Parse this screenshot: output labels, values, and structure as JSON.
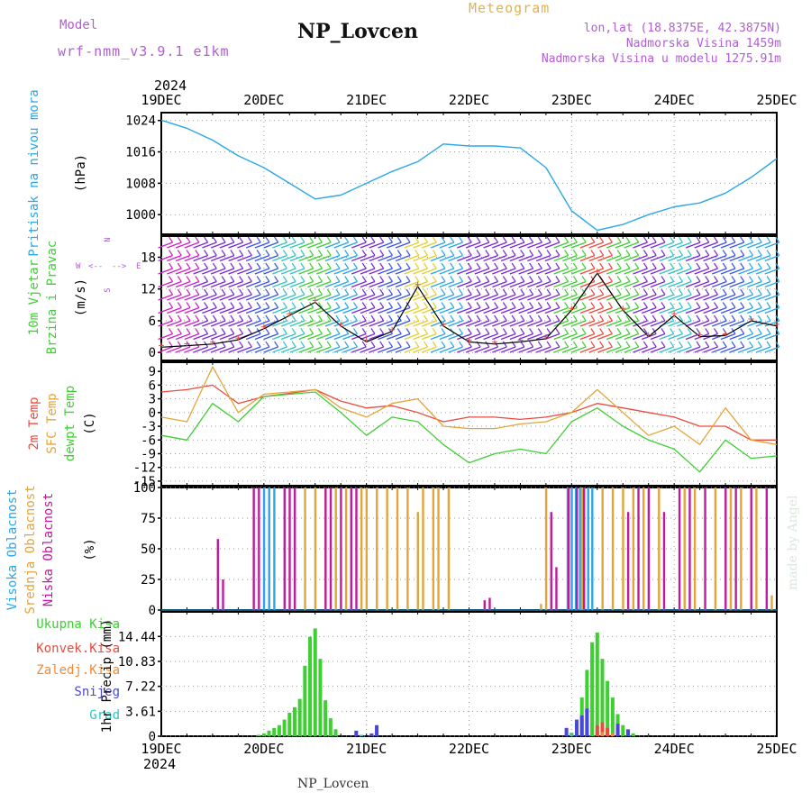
{
  "header": {
    "model_label": "Model",
    "model_version": "wrf-nmm_v3.9.1 e1km",
    "station": "NP_Lovcen",
    "title": "Meteogram",
    "lonlat": "lon,lat (18.8375E, 42.3875N)",
    "elevation": "Nadmorska Visina 1459m",
    "elevation_model": "Nadmorska Visina u modelu 1275.91m"
  },
  "footer": {
    "station": "NP_Lovcen",
    "credit": "made by Angel"
  },
  "colors": {
    "pressure": "#2aa7e6",
    "wind_speed": "#000000",
    "temp2m": "#ea4b3e",
    "sfc_temp": "#e3a43a",
    "dewpt": "#3ecf33",
    "cloud_high": "#2aa7e6",
    "cloud_mid": "#e3a43a",
    "cloud_low": "#c21a9e",
    "precip_total": "#3ecf33",
    "precip_conv": "#ea4b3e",
    "precip_frozen": "#f08a36",
    "snow": "#4848d8",
    "graupel": "#33c3c3",
    "grid": "#9a9a9a",
    "direction_label": "#b35cd6"
  },
  "chart_data": [
    {
      "type": "line",
      "id": "pressure",
      "top_axis": {
        "year": "2024",
        "days": [
          "19DEC",
          "20DEC",
          "21DEC",
          "22DEC",
          "23DEC",
          "24DEC",
          "25DEC"
        ]
      },
      "ylabel": "Pritisak na nivou mora",
      "unit": "(hPa)",
      "yticks": [
        "1024",
        "1016",
        "1008",
        "1000"
      ],
      "ylim": [
        995,
        1026
      ],
      "grid": true,
      "series": [
        {
          "x": [
            0,
            0.25,
            0.5,
            0.75,
            1,
            1.25,
            1.5,
            1.75,
            2,
            2.25,
            2.5,
            2.75,
            3,
            3.25,
            3.5,
            3.75,
            4,
            4.25,
            4.5,
            4.75,
            5,
            5.25,
            5.5,
            5.75,
            6
          ],
          "values": [
            1024.1,
            1022,
            1019,
            1015,
            1012,
            1008,
            1004,
            1005,
            1008,
            1011,
            1013.5,
            1018,
            1017.5,
            1017.5,
            1017,
            1012,
            1001,
            996,
            997.5,
            1000,
            1002,
            1003,
            1005.5,
            1009.5,
            1014.3
          ]
        }
      ]
    },
    {
      "type": "line",
      "id": "wind",
      "ylabel": "10m Vjetar",
      "ylabel2": "Brzina i Pravac",
      "unit": "(m/s)",
      "direction_legend": {
        "n": "N",
        "s": "S",
        "w": "W",
        "e": "E",
        "left_arrow": "<--",
        "right_arrow": "-->"
      },
      "yticks": [
        "18",
        "12",
        "6",
        "0"
      ],
      "ylim": [
        -1.5,
        22
      ],
      "grid": true,
      "series": [
        {
          "name": "speed",
          "x": [
            0,
            0.25,
            0.5,
            0.75,
            1,
            1.25,
            1.5,
            1.75,
            2,
            2.25,
            2.5,
            2.75,
            3,
            3.25,
            3.5,
            3.75,
            4,
            4.25,
            4.5,
            4.75,
            5,
            5.25,
            5.5,
            5.75,
            6
          ],
          "values": [
            1,
            1.3,
            1.6,
            2.4,
            4.5,
            7,
            9.5,
            5,
            2,
            4,
            12.5,
            5,
            2,
            1.6,
            2,
            2.6,
            8,
            15,
            8,
            3,
            7,
            3,
            3.2,
            6,
            5
          ]
        }
      ]
    },
    {
      "type": "line",
      "id": "temperature",
      "ylabels": [
        "2m Temp",
        "SFC Temp",
        "dewpt Temp"
      ],
      "unit": "(C)",
      "yticks": [
        "9",
        "6",
        "3",
        "0",
        "-3",
        "-6",
        "-9",
        "-12",
        "-15"
      ],
      "ylim": [
        -16,
        11
      ],
      "grid": true,
      "series": [
        {
          "name": "2m Temp",
          "x": [
            0,
            0.25,
            0.5,
            0.75,
            1,
            1.25,
            1.5,
            1.75,
            2,
            2.25,
            2.5,
            2.75,
            3,
            3.25,
            3.5,
            3.75,
            4,
            4.25,
            4.5,
            4.75,
            5,
            5.25,
            5.5,
            5.75,
            6
          ],
          "values": [
            4.5,
            5,
            6,
            2,
            3.5,
            4.2,
            5,
            2.5,
            1,
            1.5,
            0,
            -2,
            -1,
            -1,
            -1.5,
            -1,
            0,
            2,
            1,
            0,
            -1,
            -3,
            -3,
            -6,
            -6
          ]
        },
        {
          "name": "SFC Temp",
          "x": [
            0,
            0.25,
            0.5,
            0.75,
            1,
            1.25,
            1.5,
            1.75,
            2,
            2.25,
            2.5,
            2.75,
            3,
            3.25,
            3.5,
            3.75,
            4,
            4.25,
            4.5,
            4.75,
            5,
            5.25,
            5.5,
            5.75,
            6
          ],
          "values": [
            -1,
            -2,
            10,
            0,
            4,
            4.5,
            5,
            1,
            -1,
            2,
            3,
            -3,
            -3.5,
            -3.5,
            -2.5,
            -2,
            0,
            5,
            0,
            -5,
            -3,
            -7,
            1,
            -6,
            -7
          ]
        },
        {
          "name": "dewpt Temp",
          "x": [
            0,
            0.25,
            0.5,
            0.75,
            1,
            1.25,
            1.5,
            1.75,
            2,
            2.25,
            2.5,
            2.75,
            3,
            3.25,
            3.5,
            3.75,
            4,
            4.25,
            4.5,
            4.75,
            5,
            5.25,
            5.5,
            5.75,
            6
          ],
          "values": [
            -5,
            -6,
            2,
            -2,
            3.5,
            4,
            4.5,
            0,
            -5,
            -1,
            -2,
            -7,
            -11,
            -9,
            -8,
            -9,
            -2,
            1,
            -3,
            -6,
            -8,
            -13,
            -6,
            -10,
            -9.5
          ]
        }
      ]
    },
    {
      "type": "bar",
      "id": "cloud",
      "ylabels": [
        "Visoka Oblacnost",
        "Srednja Oblacnost",
        "Niska Oblacnost"
      ],
      "unit": "(%)",
      "yticks": [
        "100",
        "75",
        "50",
        "25",
        "0"
      ],
      "ylim": [
        0,
        100
      ],
      "grid": true,
      "series": [
        {
          "name": "Visoka Oblacnost",
          "x": [
            1.0,
            1.05,
            1.1,
            3.96,
            4.0,
            4.04,
            4.08,
            4.16,
            4.2
          ],
          "values": [
            100,
            100,
            100,
            100,
            100,
            100,
            100,
            100,
            100
          ]
        },
        {
          "name": "Srednja Oblacnost",
          "x": [
            1.4,
            1.5,
            1.6,
            1.7,
            1.8,
            1.95,
            2.0,
            2.1,
            2.2,
            2.3,
            2.4,
            2.5,
            2.55,
            2.65,
            2.7,
            2.8,
            3.7,
            3.75,
            4.1,
            4.3,
            4.4,
            4.5,
            4.6,
            4.7,
            4.85,
            5.1,
            5.2,
            5.4,
            5.55,
            5.65,
            5.8,
            5.95
          ],
          "values": [
            100,
            100,
            100,
            100,
            100,
            100,
            100,
            100,
            100,
            100,
            100,
            80,
            100,
            100,
            100,
            100,
            5,
            100,
            100,
            100,
            100,
            100,
            100,
            100,
            100,
            100,
            100,
            100,
            100,
            100,
            100,
            12
          ]
        },
        {
          "name": "Niska Oblacnost",
          "x": [
            0.55,
            0.6,
            0.9,
            0.95,
            1.2,
            1.25,
            1.3,
            1.6,
            1.65,
            1.75,
            1.85,
            1.9,
            3.15,
            3.2,
            3.8,
            3.85,
            3.97,
            4.05,
            4.12,
            4.55,
            4.65,
            4.75,
            4.9,
            5.05,
            5.15,
            5.3,
            5.5,
            5.6,
            5.75,
            5.9
          ],
          "values": [
            58,
            25,
            100,
            100,
            100,
            100,
            100,
            100,
            100,
            100,
            100,
            100,
            8,
            10,
            80,
            35,
            100,
            100,
            100,
            80,
            100,
            100,
            80,
            100,
            100,
            100,
            100,
            100,
            100,
            100
          ]
        }
      ]
    },
    {
      "type": "bar",
      "id": "precip",
      "ylabel": "1hr Precip (mm)",
      "legend": [
        "Ukupna Kisa",
        "Konvek.Kisa",
        "Zaledj.Kisa",
        "Snijeg",
        "Grad"
      ],
      "yticks": [
        "14.44",
        "10.83",
        "7.22",
        "3.61",
        "0"
      ],
      "ylim": [
        0,
        18
      ],
      "bottom_axis": {
        "days": [
          "19DEC",
          "20DEC",
          "21DEC",
          "22DEC",
          "23DEC",
          "24DEC",
          "25DEC"
        ],
        "year": "2024"
      },
      "grid": true,
      "series": [
        {
          "name": "Ukupna Kisa",
          "x": [
            0.95,
            1.0,
            1.05,
            1.1,
            1.15,
            1.2,
            1.25,
            1.3,
            1.35,
            1.4,
            1.45,
            1.5,
            1.55,
            1.6,
            1.65,
            1.7,
            4.0,
            4.05,
            4.1,
            4.15,
            4.2,
            4.25,
            4.3,
            4.35,
            4.4,
            4.45,
            4.5,
            4.55,
            4.6
          ],
          "values": [
            0.2,
            0.4,
            0.8,
            1.2,
            1.6,
            2.4,
            3.4,
            4.2,
            5.4,
            10.2,
            14.4,
            15.6,
            11.2,
            5.2,
            2.6,
            1.0,
            0.5,
            2.0,
            5.6,
            9.6,
            13.6,
            15.0,
            11.2,
            8.0,
            5.6,
            3.2,
            1.6,
            0.8,
            0.4
          ]
        },
        {
          "name": "Konvek.Kisa",
          "x": [
            4.25,
            4.3,
            4.35
          ],
          "values": [
            1.6,
            2.0,
            1.2
          ]
        },
        {
          "name": "Zaledj.Kisa",
          "x": [
            4.3,
            4.4
          ],
          "values": [
            0.6,
            0.4
          ]
        },
        {
          "name": "Snijeg",
          "x": [
            1.9,
            2.05,
            2.1,
            3.95,
            4.05,
            4.1,
            4.15,
            4.45,
            4.55
          ],
          "values": [
            0.8,
            0.4,
            1.6,
            1.2,
            2.4,
            3.0,
            4.0,
            1.8,
            1.0
          ]
        },
        {
          "name": "Grad",
          "x": [
            1.95,
            4.0
          ],
          "values": [
            0.2,
            0.3
          ]
        }
      ]
    }
  ]
}
